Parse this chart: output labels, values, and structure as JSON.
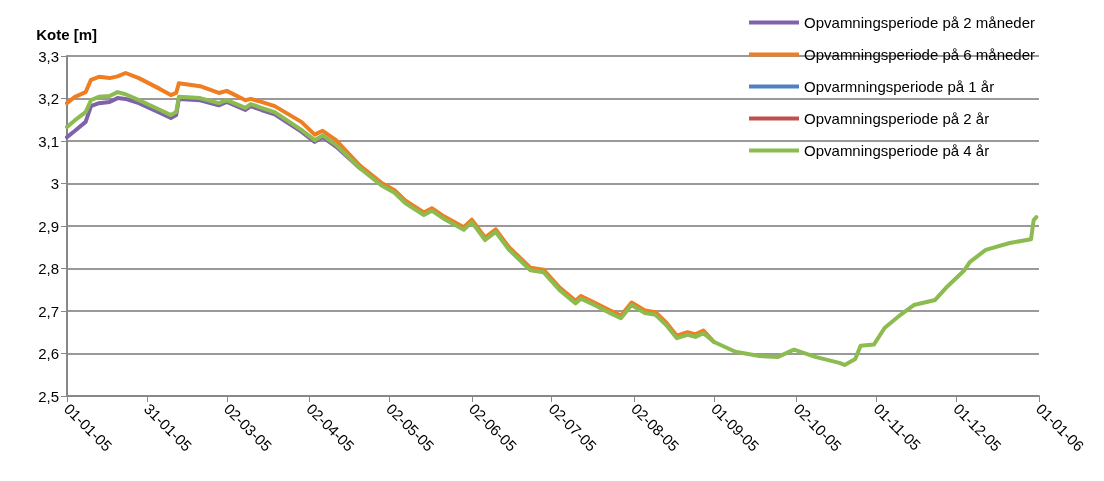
{
  "chart_data": {
    "type": "line",
    "ylabel": "Kote [m]",
    "ylim": [
      2.5,
      3.3
    ],
    "yticks": [
      {
        "value": 2.5,
        "label": "2,5"
      },
      {
        "value": 2.6,
        "label": "2,6"
      },
      {
        "value": 2.7,
        "label": "2,7"
      },
      {
        "value": 2.8,
        "label": "2,8"
      },
      {
        "value": 2.9,
        "label": "2,9"
      },
      3,
      {
        "value": 3.1,
        "label": "3,1"
      },
      {
        "value": 3.2,
        "label": "3,2"
      },
      {
        "value": 3.3,
        "label": "3,3"
      }
    ],
    "xlim": [
      "2005-01-01",
      "2006-01-01"
    ],
    "xticks": [
      {
        "value": "2005-01-01",
        "label": "01-01-05"
      },
      {
        "value": "2005-01-31",
        "label": "31-01-05"
      },
      {
        "value": "2005-03-02",
        "label": "02-03-05"
      },
      {
        "value": "2005-04-02",
        "label": "02-04-05"
      },
      {
        "value": "2005-05-02",
        "label": "02-05-05"
      },
      {
        "value": "2005-06-02",
        "label": "02-06-05"
      },
      {
        "value": "2005-07-02",
        "label": "02-07-05"
      },
      {
        "value": "2005-08-02",
        "label": "02-08-05"
      },
      {
        "value": "2005-09-01",
        "label": "01-09-05"
      },
      {
        "value": "2005-10-02",
        "label": "02-10-05"
      },
      {
        "value": "2005-11-01",
        "label": "01-11-05"
      },
      {
        "value": "2005-12-01",
        "label": "01-12-05"
      },
      {
        "value": "2006-01-01",
        "label": "01-01-06"
      }
    ],
    "x": [
      "2005-01-01",
      "2005-01-04",
      "2005-01-08",
      "2005-01-10",
      "2005-01-13",
      "2005-01-17",
      "2005-01-20",
      "2005-01-23",
      "2005-01-28",
      "2005-02-05",
      "2005-02-09",
      "2005-02-11",
      "2005-02-12",
      "2005-02-20",
      "2005-02-27",
      "2005-03-02",
      "2005-03-09",
      "2005-03-11",
      "2005-03-15",
      "2005-03-20",
      "2005-03-30",
      "2005-04-04",
      "2005-04-07",
      "2005-04-12",
      "2005-04-21",
      "2005-04-29",
      "2005-05-04",
      "2005-05-08",
      "2005-05-15",
      "2005-05-18",
      "2005-05-22",
      "2005-05-30",
      "2005-06-02",
      "2005-06-07",
      "2005-06-11",
      "2005-06-16",
      "2005-06-24",
      "2005-06-29",
      "2005-07-05",
      "2005-07-11",
      "2005-07-13",
      "2005-07-18",
      "2005-07-24",
      "2005-07-28",
      "2005-08-01",
      "2005-08-06",
      "2005-08-10",
      "2005-08-14",
      "2005-08-18",
      "2005-08-22",
      "2005-08-25",
      "2005-08-28",
      "2005-09-01",
      "2005-09-09",
      "2005-09-18",
      "2005-09-25",
      "2005-10-01",
      "2005-10-09",
      "2005-10-18",
      "2005-10-20",
      "2005-10-24",
      "2005-10-26",
      "2005-10-31",
      "2005-11-04",
      "2005-11-10",
      "2005-11-15",
      "2005-11-23",
      "2005-11-27",
      "2005-12-04",
      "2005-12-06",
      "2005-12-12",
      "2005-12-21",
      "2005-12-29",
      "2005-12-30",
      "2005-12-31"
    ],
    "series": [
      {
        "name": "Opvamningsperiode på 2 måneder",
        "color": "#7f63a9",
        "values": [
          3.109,
          3.124,
          3.145,
          3.182,
          3.189,
          3.192,
          3.201,
          3.199,
          3.189,
          3.166,
          3.154,
          3.161,
          3.199,
          3.196,
          3.184,
          3.192,
          3.173,
          3.182,
          3.173,
          3.163,
          3.122,
          3.098,
          3.109,
          3.087,
          3.036,
          null,
          null,
          null,
          null,
          null,
          null,
          null,
          null,
          null,
          null,
          null,
          null,
          null,
          null,
          null,
          null,
          null,
          null,
          null,
          null,
          null,
          null,
          null,
          null,
          null,
          null,
          null,
          null,
          null,
          null,
          null,
          null,
          null,
          null,
          null,
          null,
          null,
          null,
          null,
          null,
          null,
          null,
          null,
          null,
          null,
          null,
          null,
          null,
          null,
          null
        ]
      },
      {
        "name": "Opvamningsperiode på 6 måneder",
        "color": "#ef7d22",
        "values": [
          3.189,
          3.204,
          3.215,
          3.244,
          3.251,
          3.248,
          3.252,
          3.26,
          3.248,
          3.222,
          3.208,
          3.213,
          3.236,
          3.229,
          3.213,
          3.218,
          3.196,
          3.199,
          3.192,
          3.182,
          3.145,
          3.115,
          3.124,
          3.102,
          3.042,
          3.002,
          2.984,
          2.96,
          2.932,
          2.942,
          2.925,
          2.897,
          2.915,
          2.873,
          2.892,
          2.85,
          2.802,
          2.797,
          2.755,
          2.724,
          2.735,
          2.72,
          2.701,
          2.689,
          2.72,
          2.701,
          2.697,
          2.673,
          2.642,
          2.65,
          2.645,
          2.654,
          2.627,
          null,
          null,
          null,
          null,
          null,
          null,
          null,
          null,
          null,
          null,
          null,
          null,
          null,
          null,
          null,
          null,
          null,
          null,
          null,
          null,
          null,
          null
        ]
      },
      {
        "name": "Opvarmningsperiode på 1 år",
        "color": "#4f81bd",
        "values": [
          null,
          null,
          null,
          null,
          null,
          null,
          null,
          null,
          null,
          null,
          null,
          null,
          null,
          null,
          null,
          null,
          null,
          null,
          null,
          null,
          null,
          null,
          null,
          null,
          null,
          null,
          null,
          null,
          null,
          null,
          null,
          null,
          null,
          null,
          null,
          null,
          null,
          null,
          null,
          null,
          null,
          null,
          null,
          null,
          null,
          null,
          null,
          null,
          null,
          null,
          null,
          null,
          null,
          null,
          null,
          null,
          null,
          null,
          null,
          null,
          null,
          null,
          null,
          null,
          null,
          null,
          null,
          null,
          null,
          null,
          null,
          null,
          null,
          null,
          null
        ]
      },
      {
        "name": "Opvamningsperiode på 2 år",
        "color": "#c0504d",
        "values": [
          null,
          null,
          null,
          null,
          null,
          null,
          null,
          null,
          null,
          null,
          null,
          null,
          null,
          null,
          null,
          null,
          null,
          null,
          null,
          null,
          null,
          null,
          null,
          null,
          null,
          null,
          null,
          null,
          null,
          null,
          null,
          null,
          null,
          null,
          null,
          null,
          null,
          null,
          null,
          null,
          null,
          null,
          null,
          null,
          null,
          null,
          null,
          null,
          null,
          null,
          null,
          null,
          null,
          null,
          null,
          null,
          null,
          null,
          null,
          null,
          null,
          null,
          null,
          null,
          null,
          null,
          null,
          null,
          null,
          null,
          null,
          null,
          null,
          null,
          null
        ]
      },
      {
        "name": "Opvamningsperiode på 4 år",
        "color": "#8cbb50",
        "values": [
          3.133,
          3.149,
          3.168,
          3.196,
          3.204,
          3.206,
          3.215,
          3.21,
          3.196,
          3.173,
          3.161,
          3.168,
          3.204,
          3.201,
          3.189,
          3.196,
          3.178,
          3.187,
          3.178,
          3.168,
          3.126,
          3.102,
          3.113,
          3.091,
          3.036,
          2.996,
          2.978,
          2.954,
          2.926,
          2.936,
          2.919,
          2.891,
          2.909,
          2.867,
          2.886,
          2.844,
          2.796,
          2.791,
          2.749,
          2.718,
          2.729,
          2.714,
          2.695,
          2.683,
          2.714,
          2.695,
          2.691,
          2.667,
          2.636,
          2.644,
          2.639,
          2.648,
          2.627,
          2.604,
          2.594,
          2.592,
          2.609,
          2.592,
          2.578,
          2.573,
          2.587,
          2.618,
          2.621,
          2.66,
          2.691,
          2.714,
          2.726,
          2.754,
          2.796,
          2.815,
          2.844,
          2.86,
          2.869,
          2.914,
          2.921
        ]
      }
    ],
    "grid": "y",
    "legend": "top right",
    "marker": "none",
    "line_style": "solid"
  }
}
